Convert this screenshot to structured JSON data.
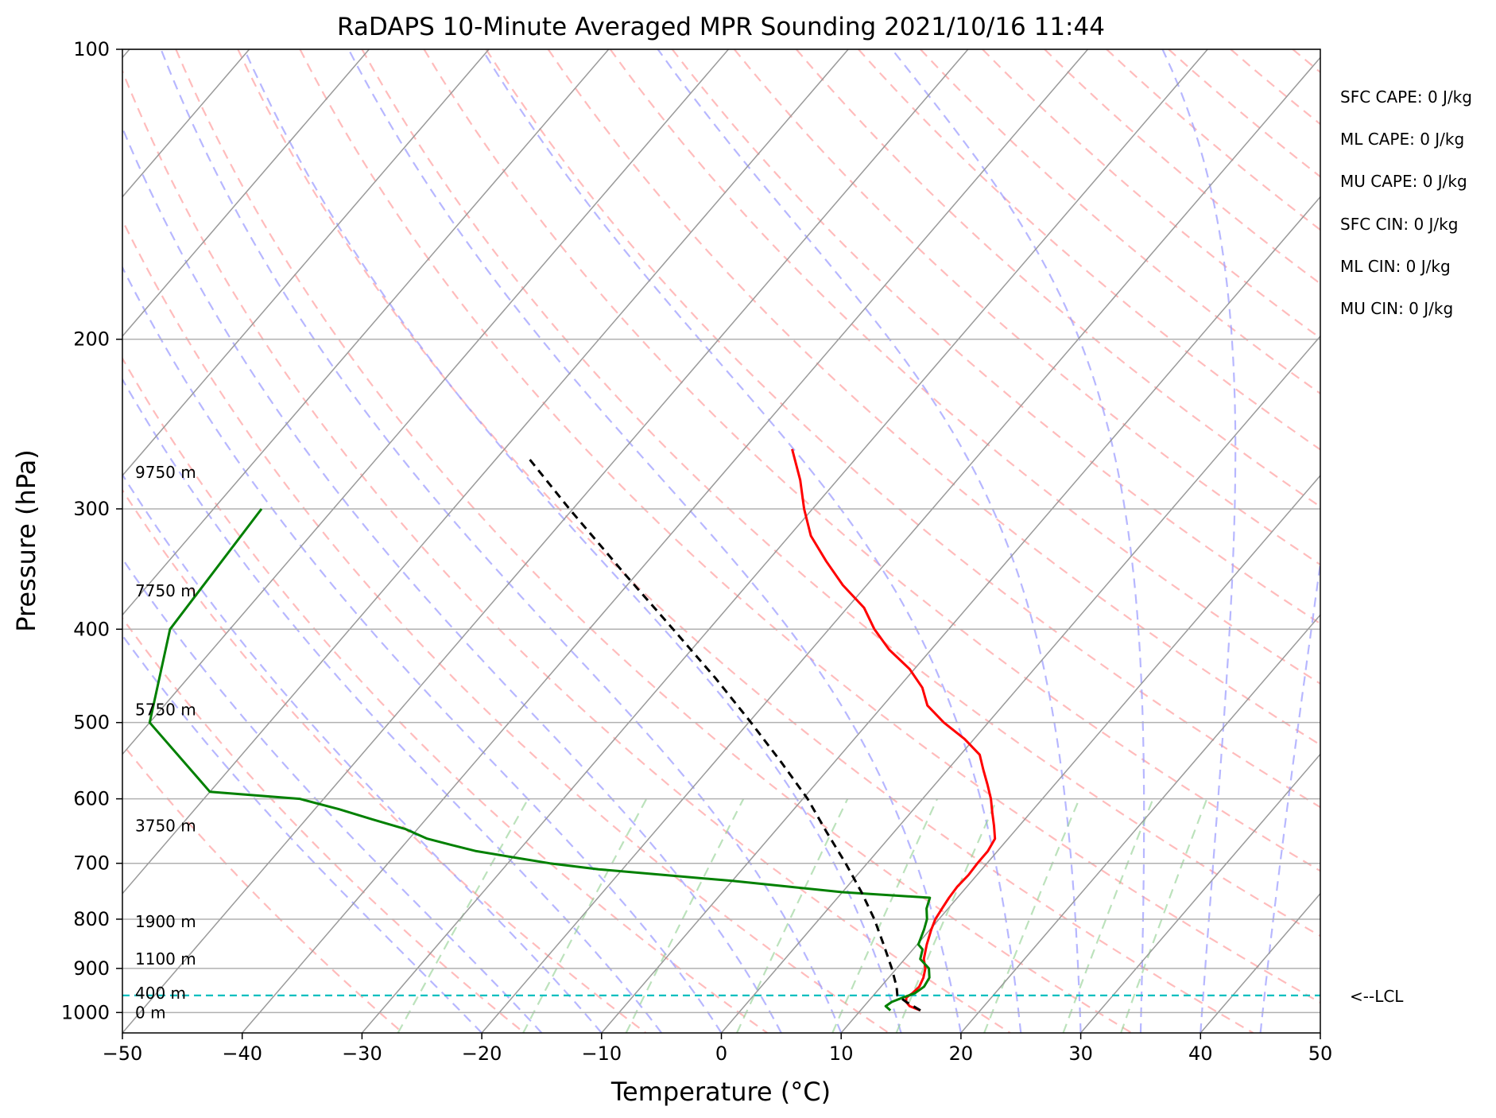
{
  "chart_data": {
    "type": "line",
    "title": "RaDAPS 10-Minute Averaged MPR Sounding 2021/10/16 11:44",
    "xlabel": "Temperature (°C)",
    "ylabel": "Pressure (hPa)",
    "xlim": [
      -50,
      50
    ],
    "ylim": [
      1050,
      100
    ],
    "y_scale": "log",
    "skew": "skew-T",
    "x_ticks": [
      "−50",
      "−40",
      "−30",
      "−20",
      "−10",
      "0",
      "10",
      "20",
      "30",
      "40",
      "50"
    ],
    "y_ticks": [
      "100",
      "200",
      "300",
      "400",
      "500",
      "600",
      "700",
      "800",
      "900",
      "1000"
    ],
    "grid": true,
    "background_lines": [
      "dry adiabats",
      "moist adiabats",
      "mixing ratio lines",
      "isotherms"
    ],
    "series": [
      {
        "role": "temperature",
        "color": "#ff0000",
        "points": [
          [
            995,
            15.0
          ],
          [
            985,
            13.8
          ],
          [
            975,
            13.2
          ],
          [
            965,
            12.9
          ],
          [
            955,
            13.1
          ],
          [
            940,
            13.2
          ],
          [
            920,
            12.9
          ],
          [
            900,
            12.4
          ],
          [
            880,
            11.6
          ],
          [
            850,
            10.8
          ],
          [
            820,
            10.1
          ],
          [
            800,
            9.7
          ],
          [
            780,
            9.5
          ],
          [
            760,
            9.3
          ],
          [
            740,
            9.2
          ],
          [
            720,
            9.3
          ],
          [
            700,
            9.2
          ],
          [
            680,
            9.2
          ],
          [
            660,
            8.9
          ],
          [
            640,
            7.9
          ],
          [
            620,
            6.8
          ],
          [
            600,
            5.7
          ],
          [
            580,
            4.4
          ],
          [
            560,
            3.0
          ],
          [
            540,
            1.6
          ],
          [
            520,
            -0.8
          ],
          [
            500,
            -3.7
          ],
          [
            480,
            -6.3
          ],
          [
            460,
            -8.0
          ],
          [
            440,
            -10.4
          ],
          [
            420,
            -13.5
          ],
          [
            400,
            -16.2
          ],
          [
            380,
            -18.6
          ],
          [
            360,
            -22.0
          ],
          [
            340,
            -25.1
          ],
          [
            320,
            -28.2
          ],
          [
            300,
            -30.7
          ],
          [
            280,
            -33.1
          ],
          [
            260,
            -36.0
          ]
        ]
      },
      {
        "role": "dewpoint",
        "color": "#008000",
        "points": [
          [
            995,
            12.5
          ],
          [
            985,
            11.8
          ],
          [
            975,
            12.0
          ],
          [
            965,
            12.6
          ],
          [
            955,
            13.3
          ],
          [
            940,
            13.6
          ],
          [
            920,
            13.4
          ],
          [
            900,
            12.7
          ],
          [
            880,
            11.3
          ],
          [
            860,
            10.8
          ],
          [
            850,
            10.1
          ],
          [
            820,
            9.5
          ],
          [
            800,
            9.0
          ],
          [
            780,
            8.2
          ],
          [
            760,
            7.7
          ],
          [
            750,
            0.0
          ],
          [
            740,
            -5.0
          ],
          [
            730,
            -10.0
          ],
          [
            720,
            -16.0
          ],
          [
            710,
            -22.0
          ],
          [
            700,
            -26.5
          ],
          [
            690,
            -30.0
          ],
          [
            680,
            -33.5
          ],
          [
            670,
            -36.0
          ],
          [
            660,
            -38.5
          ],
          [
            645,
            -41.0
          ],
          [
            630,
            -44.5
          ],
          [
            615,
            -48.0
          ],
          [
            600,
            -52.0
          ],
          [
            590,
            -60.0
          ],
          [
            500,
            -70.0
          ],
          [
            400,
            -75.0
          ],
          [
            300,
            -76.0
          ]
        ]
      },
      {
        "role": "parcel profile",
        "color": "#000000",
        "dash": "dashed",
        "points": [
          [
            995,
            15.0
          ],
          [
            975,
            13.2
          ],
          [
            960,
            12.0
          ],
          [
            940,
            11.3
          ],
          [
            900,
            9.6
          ],
          [
            850,
            7.2
          ],
          [
            800,
            4.6
          ],
          [
            750,
            1.6
          ],
          [
            700,
            -1.8
          ],
          [
            650,
            -5.6
          ],
          [
            600,
            -9.6
          ],
          [
            550,
            -14.4
          ],
          [
            500,
            -19.8
          ],
          [
            450,
            -25.9
          ],
          [
            400,
            -33.0
          ],
          [
            350,
            -41.1
          ],
          [
            300,
            -50.3
          ],
          [
            265,
            -57.5
          ]
        ]
      }
    ],
    "lcl": {
      "pressure": 960,
      "label": "<--LCL",
      "color": "#00bfbf"
    },
    "height_labels": [
      {
        "text": "0 m",
        "pressure": 1000
      },
      {
        "text": "400 m",
        "pressure": 955
      },
      {
        "text": "1100 m",
        "pressure": 880
      },
      {
        "text": "1900 m",
        "pressure": 805
      },
      {
        "text": "3750 m",
        "pressure": 640
      },
      {
        "text": "5750 m",
        "pressure": 485
      },
      {
        "text": "7750 m",
        "pressure": 365
      },
      {
        "text": "9750 m",
        "pressure": 275
      }
    ],
    "indices": [
      "SFC CAPE: 0 J/kg",
      "ML CAPE: 0 J/kg",
      "MU CAPE: 0 J/kg",
      "SFC CIN: 0 J/kg",
      "ML CIN: 0 J/kg",
      "MU CIN: 0 J/kg"
    ]
  }
}
